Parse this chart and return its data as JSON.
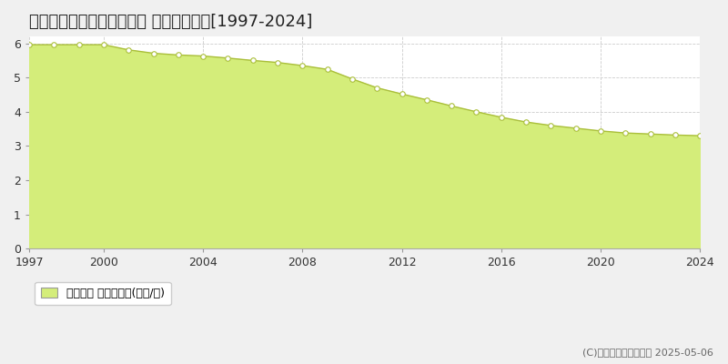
{
  "title": "東彼杵郡東彼杵町千綿宿郷 基準地価推移[1997-2024]",
  "years": [
    1997,
    1998,
    1999,
    2000,
    2001,
    2002,
    2003,
    2004,
    2005,
    2006,
    2007,
    2008,
    2009,
    2010,
    2011,
    2012,
    2013,
    2014,
    2015,
    2016,
    2017,
    2018,
    2019,
    2020,
    2021,
    2022,
    2023,
    2024
  ],
  "values": [
    5.96,
    5.96,
    5.96,
    5.96,
    5.81,
    5.71,
    5.66,
    5.63,
    5.57,
    5.5,
    5.44,
    5.35,
    5.24,
    4.96,
    4.7,
    4.52,
    4.35,
    4.17,
    4.0,
    3.84,
    3.7,
    3.6,
    3.52,
    3.44,
    3.38,
    3.35,
    3.32,
    3.3
  ],
  "fill_color": "#d4ed7a",
  "line_color": "#aabf3a",
  "marker_color": "#ffffff",
  "marker_edge_color": "#aabf3a",
  "background_color": "#f0f0f0",
  "plot_bg_color": "#ffffff",
  "grid_color": "#cccccc",
  "ylim": [
    0,
    6.2
  ],
  "yticks": [
    0,
    1,
    2,
    3,
    4,
    5,
    6
  ],
  "xticks": [
    1997,
    2000,
    2004,
    2008,
    2012,
    2016,
    2020,
    2024
  ],
  "legend_label": "基準地価 平均坪単価(万円/坪)",
  "copyright_text": "(C)土地価格ドットコム 2025-05-06",
  "title_fontsize": 13,
  "tick_fontsize": 9,
  "legend_fontsize": 9
}
